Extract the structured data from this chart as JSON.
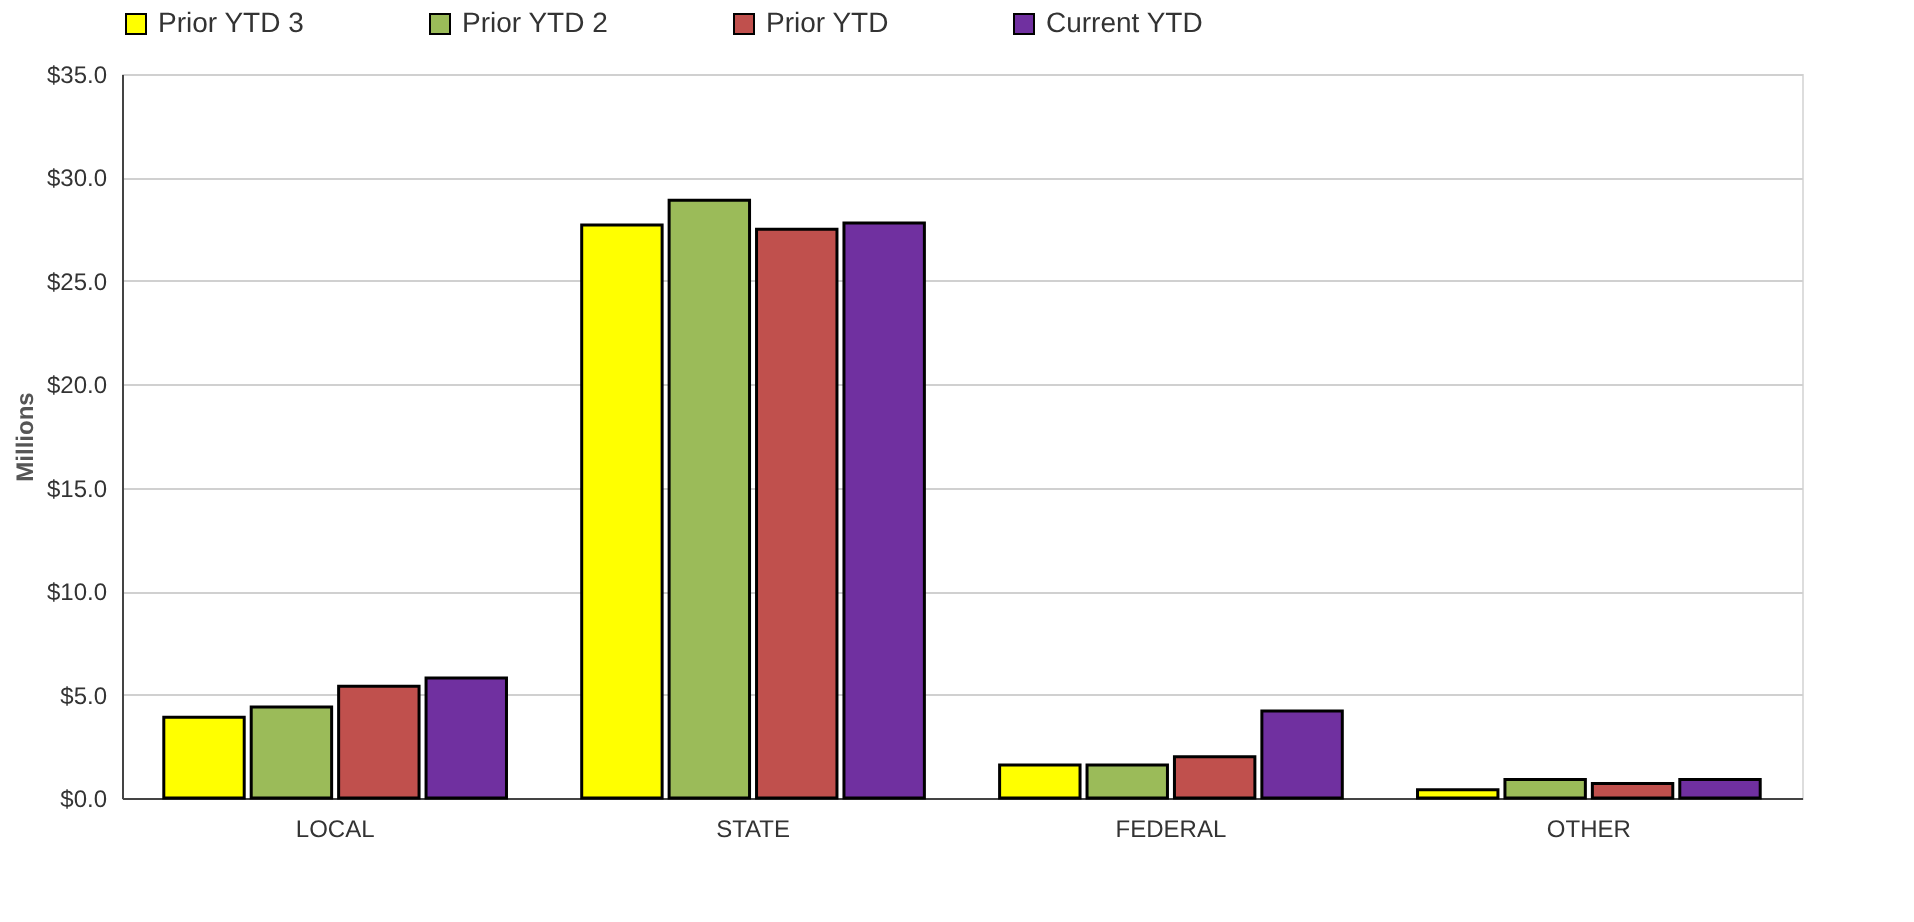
{
  "chart_data": {
    "type": "bar",
    "ylabel": "Millions",
    "categories": [
      "LOCAL",
      "STATE",
      "FEDERAL",
      "OTHER"
    ],
    "series": [
      {
        "name": "Prior YTD 3",
        "color": "#ffff00",
        "values": [
          3.9,
          27.7,
          1.6,
          0.4
        ]
      },
      {
        "name": "Prior YTD 2",
        "color": "#9bbb59",
        "values": [
          4.4,
          28.9,
          1.6,
          0.9
        ]
      },
      {
        "name": "Prior YTD",
        "color": "#c0504d",
        "values": [
          5.4,
          27.5,
          2.0,
          0.7
        ]
      },
      {
        "name": "Current YTD",
        "color": "#7030a0",
        "values": [
          5.8,
          27.8,
          4.2,
          0.9
        ]
      }
    ],
    "ylim": [
      0,
      35
    ],
    "yticks": [
      {
        "value": 0,
        "label": "$0.0"
      },
      {
        "value": 5,
        "label": "$5.0"
      },
      {
        "value": 10,
        "label": "$10.0"
      },
      {
        "value": 15,
        "label": "$15.0"
      },
      {
        "value": 20,
        "label": "$20.0"
      },
      {
        "value": 25,
        "label": "$25.0"
      },
      {
        "value": 30,
        "label": "$30.0"
      },
      {
        "value": 35,
        "label": "$35.0"
      }
    ],
    "grid": "y",
    "legend": "top"
  }
}
